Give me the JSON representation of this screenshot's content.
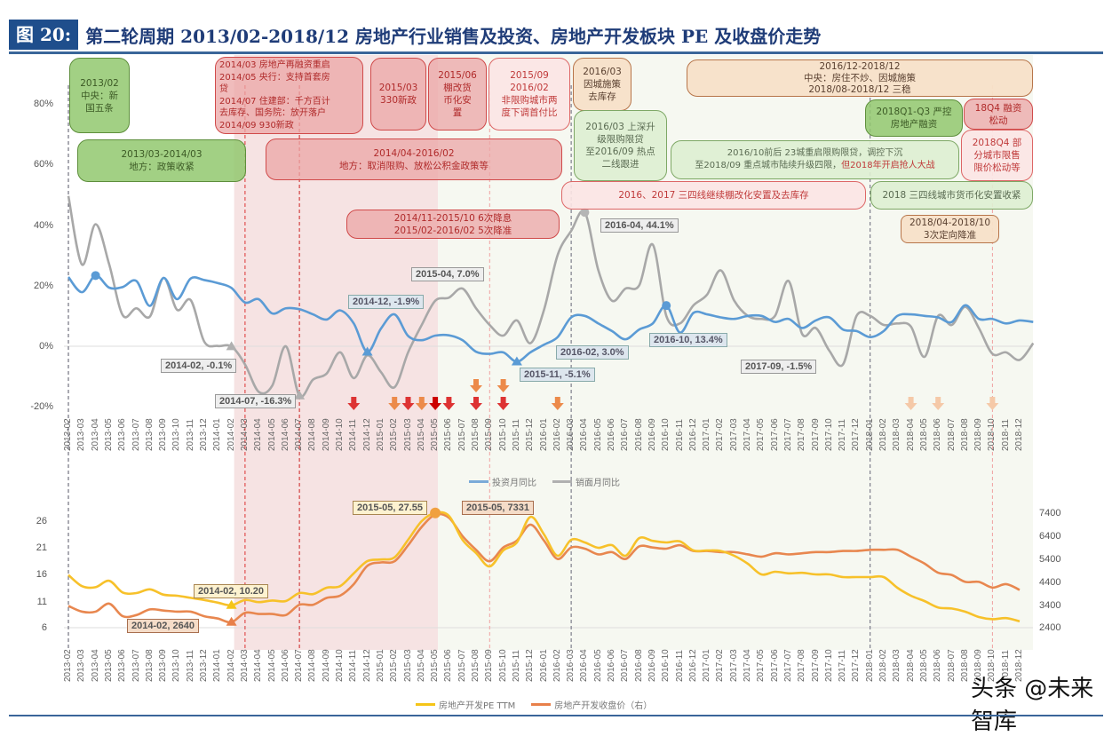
{
  "header": {
    "figure_number": "图 20:",
    "title": "第二轮周期 2013/02-2018/12 房地产行业销售及投资、房地产开发板块 PE 及收盘价走势"
  },
  "top_chart": {
    "y_ticks": [
      "80%",
      "60%",
      "40%",
      "20%",
      "0%",
      "-20%"
    ],
    "legend": [
      {
        "label": "投资月同比",
        "color": "#6a9fd4"
      },
      {
        "label": "销面月同比",
        "color": "#aaaaaa"
      }
    ]
  },
  "bottom_chart": {
    "y_left_ticks": [
      "26",
      "21",
      "16",
      "11",
      "6"
    ],
    "y_right_ticks": [
      "7400",
      "6400",
      "5400",
      "4400",
      "3400",
      "2400"
    ],
    "legend": [
      {
        "label": "房地产开发PE TTM",
        "color": "#f5c518"
      },
      {
        "label": "房地产开发收盘价（右）",
        "color": "#e8804a"
      }
    ]
  },
  "x_labels": [
    "2013-02",
    "2013-03",
    "2013-04",
    "2013-05",
    "2013-06",
    "2013-07",
    "2013-08",
    "2013-09",
    "2013-10",
    "2013-11",
    "2013-12",
    "2014-01",
    "2014-02",
    "2014-03",
    "2014-04",
    "2014-05",
    "2014-06",
    "2014-07",
    "2014-08",
    "2014-09",
    "2014-10",
    "2014-11",
    "2014-12",
    "2015-01",
    "2015-02",
    "2015-03",
    "2015-04",
    "2015-05",
    "2015-06",
    "2015-07",
    "2015-08",
    "2015-09",
    "2015-10",
    "2015-11",
    "2015-12",
    "2016-01",
    "2016-02",
    "2016-03",
    "2016-04",
    "2016-05",
    "2016-06",
    "2016-07",
    "2016-08",
    "2016-09",
    "2016-10",
    "2016-11",
    "2016-12",
    "2017-01",
    "2017-02",
    "2017-03",
    "2017-04",
    "2017-05",
    "2017-06",
    "2017-07",
    "2017-08",
    "2017-09",
    "2017-10",
    "2017-11",
    "2017-12",
    "2018-01",
    "2018-02",
    "2018-03",
    "2018-04",
    "2018-05",
    "2018-06",
    "2018-07",
    "2018-08",
    "2018-09",
    "2018-10",
    "2018-11",
    "2018-12"
  ],
  "annotations": {
    "a1": [
      "2013/02",
      "中央：新",
      "国五条"
    ],
    "a2": [
      "2013/03-2014/03",
      "地方：政策收紧"
    ],
    "a3": [
      "2014/03 房地产再融资重启",
      "2014/05 央行：支持首套房",
      "贷",
      "2014/07 住建部：千方百计",
      "去库存、国务院：放开落户",
      "2014/09 930新政"
    ],
    "a4": [
      "2015/03",
      "330新政"
    ],
    "a5": [
      "2015/06",
      "棚改货",
      "币化安",
      "置"
    ],
    "a6": [
      "2015/09",
      "2016/02",
      "非限购城市两",
      "度下调首付比"
    ],
    "a7": [
      "2014/04-2016/02",
      "地方：取消限购、放松公积金政策等"
    ],
    "a8": [
      "2014/11-2015/10 6次降息",
      "2015/02-2016/02 5次降准"
    ],
    "a9": [
      "2016/03",
      "因城施策",
      "去库存"
    ],
    "a10": [
      "2016/03 上深升",
      "级限购限贷",
      "至2016/09 热点",
      "二线跟进"
    ],
    "a11": [
      "2016/12-2018/12",
      "中央：房住不炒、因城施策",
      "2018/08-2018/12 三稳"
    ],
    "a12": [
      "2018Q1-Q3 严控",
      "房地产融资"
    ],
    "a13": [
      "18Q4 融资",
      "松动"
    ],
    "a14": [
      "2016/10前后 23城重启限购限贷，调控下沉",
      "至2018/09 重点城市陆续升级四限，",
      "但2018年开启抢人大战"
    ],
    "a15": [
      "2018Q4 部",
      "分城市限售",
      "限价松动等"
    ],
    "a16": [
      "2016、2017 三四线继续棚改化安置及去库存"
    ],
    "a17": [
      "2018 三四线城市货币化安置收紧"
    ],
    "a18": [
      "2018/04-2018/10",
      "3次定向降准"
    ]
  },
  "point_labels": {
    "p1": "2014-02, -0.1%",
    "p2": "2014-07, -16.3%",
    "p3": "2014-12, -1.9%",
    "p4": "2015-04, 7.0%",
    "p5": "2016-04, 44.1%",
    "p6": "2016-02, 3.0%",
    "p7": "2015-11, -5.1%",
    "p8": "2016-10, 13.4%",
    "p9": "2017-09, -1.5%",
    "p10": "2015-05, 27.55",
    "p11": "2015-05, 7331",
    "p12": "2014-02, 10.20",
    "p13": "2014-02, 2640"
  },
  "watermark": "头条 @未来智库",
  "chart_data": [
    {
      "type": "line",
      "title": "房地产行业销售及投资月同比",
      "x": [
        "2013-02",
        "2013-03",
        "2013-04",
        "2013-05",
        "2013-06",
        "2013-07",
        "2013-08",
        "2013-09",
        "2013-10",
        "2013-11",
        "2013-12",
        "2014-01",
        "2014-02",
        "2014-03",
        "2014-04",
        "2014-05",
        "2014-06",
        "2014-07",
        "2014-08",
        "2014-09",
        "2014-10",
        "2014-11",
        "2014-12",
        "2015-01",
        "2015-02",
        "2015-03",
        "2015-04",
        "2015-05",
        "2015-06",
        "2015-07",
        "2015-08",
        "2015-09",
        "2015-10",
        "2015-11",
        "2015-12",
        "2016-01",
        "2016-02",
        "2016-03",
        "2016-04",
        "2016-05",
        "2016-06",
        "2016-07",
        "2016-08",
        "2016-09",
        "2016-10",
        "2016-11",
        "2016-12",
        "2017-01",
        "2017-02",
        "2017-03",
        "2017-04",
        "2017-05",
        "2017-06",
        "2017-07",
        "2017-08",
        "2017-09",
        "2017-10",
        "2017-11",
        "2017-12",
        "2018-01",
        "2018-02",
        "2018-03",
        "2018-04",
        "2018-05",
        "2018-06",
        "2018-07",
        "2018-08",
        "2018-09",
        "2018-10",
        "2018-11",
        "2018-12"
      ],
      "series": [
        {
          "name": "投资月同比",
          "values": [
            22.8,
            17.8,
            23.3,
            19.3,
            19.5,
            21.5,
            13.3,
            22.5,
            15.5,
            22.3,
            21.8,
            20.8,
            19.2,
            14.4,
            15.5,
            10.8,
            12.5,
            12.2,
            10.5,
            8.8,
            11.8,
            7.5,
            -1.9,
            5.8,
            10.5,
            3.4,
            2.0,
            3.5,
            3.6,
            2.0,
            -1.8,
            -2.5,
            -2.0,
            -5.1,
            -2.0,
            0.5,
            3.0,
            9.5,
            10.0,
            7.5,
            5.0,
            2.3,
            5.5,
            7.5,
            13.4,
            4.5,
            11.0,
            10.5,
            9.5,
            9.0,
            10.0,
            10.0,
            8.0,
            9.0,
            6.0,
            8.5,
            9.5,
            5.5,
            5.0,
            3.0,
            5.0,
            10.0,
            10.5,
            10.0,
            9.5,
            8.0,
            13.5,
            9.0,
            9.0,
            7.5,
            8.5,
            8.0
          ]
        },
        {
          "name": "销面月同比",
          "values": [
            49.5,
            26.9,
            40.2,
            27.0,
            10.2,
            12.5,
            9.8,
            22.5,
            12.0,
            15.2,
            1.5,
            0.1,
            -0.1,
            -6.0,
            -15.0,
            -13.0,
            0.0,
            -16.3,
            -11.0,
            -9.0,
            -2.0,
            -10.5,
            -3.0,
            -8.5,
            -13.5,
            -2.0,
            7.0,
            15.0,
            16.0,
            19.0,
            12.5,
            7.0,
            3.5,
            8.5,
            1.0,
            12.0,
            30.0,
            38.0,
            44.1,
            25.0,
            15.0,
            19.0,
            20.0,
            33.5,
            10.0,
            7.5,
            13.5,
            17.0,
            25.0,
            15.0,
            10.0,
            9.0,
            10.0,
            21.5,
            4.0,
            6.0,
            -1.5,
            -6.0,
            10.0,
            10.0,
            7.0,
            7.5,
            6.5,
            -3.5,
            10.0,
            7.0,
            13.0,
            6.0,
            -2.5,
            -2.0,
            -4.5,
            1.0
          ]
        }
      ],
      "ylabel": "",
      "ylim": [
        -20,
        80
      ],
      "y_ticks": [
        "-20%",
        "0%",
        "20%",
        "40%",
        "60%",
        "80%"
      ],
      "legend_position": "bottom",
      "annotations": [
        "2014-02, -0.1%",
        "2014-07, -16.3%",
        "2014-12, -1.9%",
        "2015-04, 7.0%",
        "2016-04, 44.1%",
        "2016-02, 3.0%",
        "2015-11, -5.1%",
        "2016-10, 13.4%",
        "2017-09, -1.5%"
      ]
    },
    {
      "type": "line",
      "title": "房地产开发板块 PE 及收盘价",
      "x": [
        "2013-02",
        "2013-03",
        "2013-04",
        "2013-05",
        "2013-06",
        "2013-07",
        "2013-08",
        "2013-09",
        "2013-10",
        "2013-11",
        "2013-12",
        "2014-01",
        "2014-02",
        "2014-03",
        "2014-04",
        "2014-05",
        "2014-06",
        "2014-07",
        "2014-08",
        "2014-09",
        "2014-10",
        "2014-11",
        "2014-12",
        "2015-01",
        "2015-02",
        "2015-03",
        "2015-04",
        "2015-05",
        "2015-06",
        "2015-07",
        "2015-08",
        "2015-09",
        "2015-10",
        "2015-11",
        "2015-12",
        "2016-01",
        "2016-02",
        "2016-03",
        "2016-04",
        "2016-05",
        "2016-06",
        "2016-07",
        "2016-08",
        "2016-09",
        "2016-10",
        "2016-11",
        "2016-12",
        "2017-01",
        "2017-02",
        "2017-03",
        "2017-04",
        "2017-05",
        "2017-06",
        "2017-07",
        "2017-08",
        "2017-09",
        "2017-10",
        "2017-11",
        "2017-12",
        "2018-01",
        "2018-02",
        "2018-03",
        "2018-04",
        "2018-05",
        "2018-06",
        "2018-07",
        "2018-08",
        "2018-09",
        "2018-10",
        "2018-11",
        "2018-12"
      ],
      "series": [
        {
          "name": "房地产开发PE TTM",
          "axis": "left",
          "values": [
            15.9,
            13.8,
            13.6,
            14.8,
            12.6,
            12.5,
            13.2,
            12.2,
            12.0,
            11.6,
            11.2,
            10.7,
            10.2,
            11.2,
            10.8,
            11.1,
            11.0,
            12.5,
            12.3,
            13.5,
            13.8,
            16.2,
            18.5,
            18.8,
            19.2,
            22.5,
            26.0,
            27.55,
            27.0,
            22.5,
            20.0,
            17.5,
            20.5,
            22.0,
            26.8,
            23.5,
            19.5,
            22.5,
            22.0,
            21.0,
            21.5,
            19.5,
            22.8,
            22.3,
            22.0,
            22.2,
            20.5,
            20.5,
            20.4,
            19.5,
            18.0,
            16.0,
            16.5,
            16.2,
            16.3,
            16.0,
            16.0,
            15.5,
            15.5,
            15.5,
            15.5,
            13.5,
            12.0,
            11.0,
            9.8,
            9.6,
            9.0,
            8.0,
            7.6,
            7.8,
            7.2
          ]
        },
        {
          "name": "房地产开发收盘价（右）",
          "axis": "right",
          "values": [
            3350,
            3100,
            3100,
            3450,
            2900,
            2950,
            3200,
            3150,
            3100,
            3100,
            2900,
            2800,
            2640,
            3050,
            3000,
            3000,
            2950,
            3400,
            3400,
            3700,
            3800,
            4300,
            5100,
            5250,
            5300,
            6000,
            6800,
            7331,
            7200,
            6400,
            5800,
            5300,
            5900,
            6200,
            6900,
            6200,
            5400,
            5900,
            5850,
            5600,
            5700,
            5400,
            5950,
            5900,
            5850,
            6000,
            5750,
            5750,
            5700,
            5700,
            5600,
            5500,
            5650,
            5600,
            5650,
            5700,
            5700,
            5750,
            5750,
            5800,
            5800,
            5800,
            5500,
            5200,
            4800,
            4700,
            4400,
            4400,
            4150,
            4300,
            4050
          ]
        }
      ],
      "ylim_left": [
        6,
        28
      ],
      "ylim_right": [
        2400,
        7400
      ],
      "y_left_ticks": [
        "6",
        "11",
        "16",
        "21",
        "26"
      ],
      "y_right_ticks": [
        "2400",
        "3400",
        "4400",
        "5400",
        "6400",
        "7400"
      ],
      "legend_position": "bottom",
      "annotations": [
        "2015-05, 27.55",
        "2015-05, 7331",
        "2014-02, 10.20",
        "2014-02, 2640"
      ]
    }
  ]
}
